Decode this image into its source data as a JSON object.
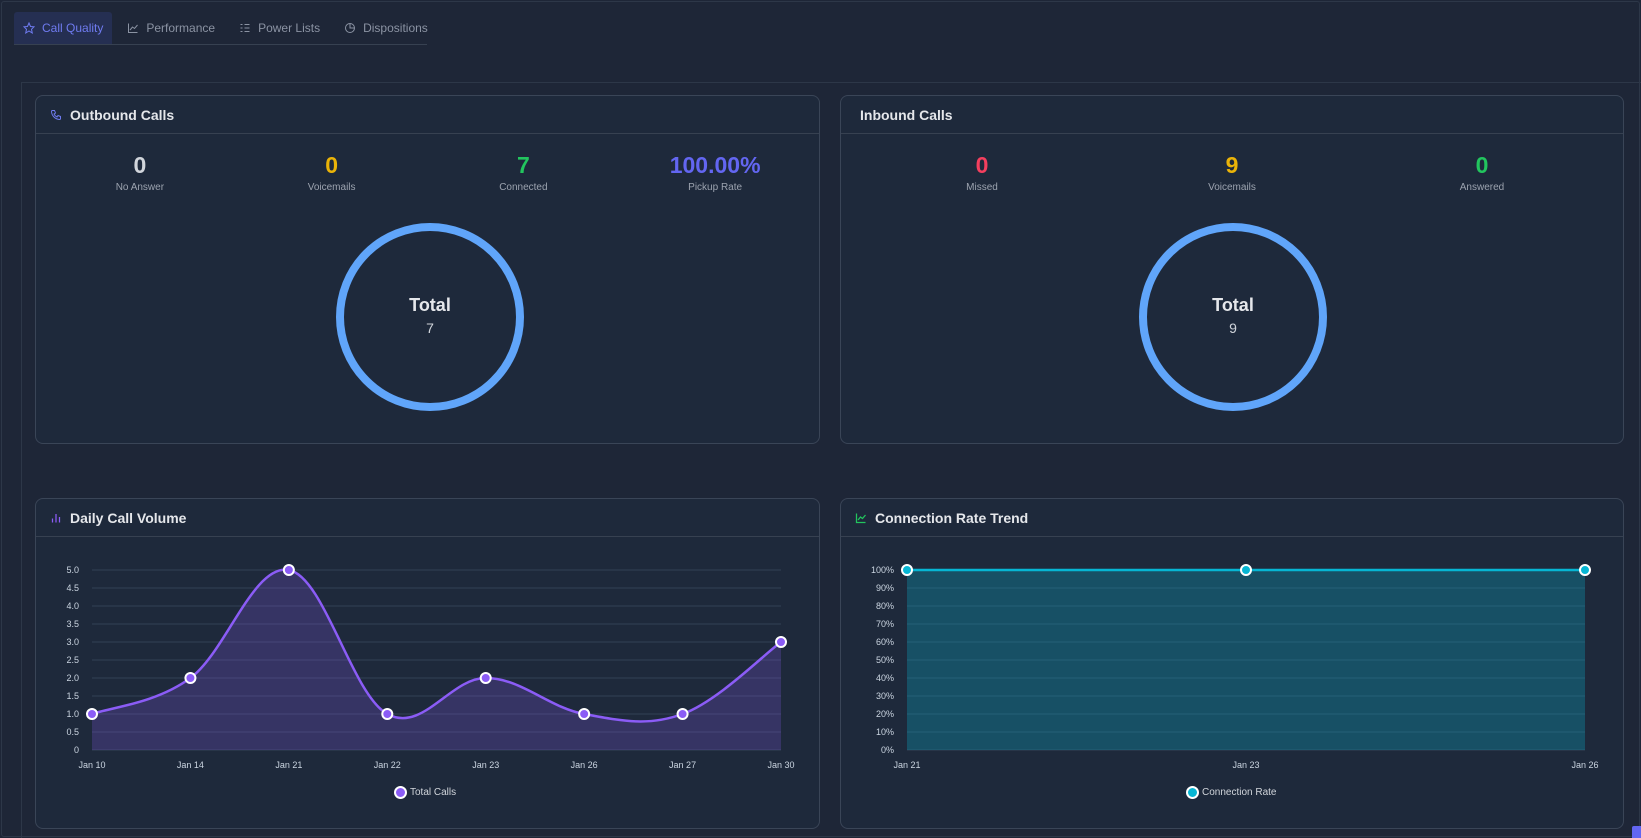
{
  "tabs": [
    {
      "label": "Call Quality",
      "icon": "star-icon",
      "active": true
    },
    {
      "label": "Performance",
      "icon": "line-chart-icon",
      "active": false
    },
    {
      "label": "Power Lists",
      "icon": "list-icon",
      "active": false
    },
    {
      "label": "Dispositions",
      "icon": "pie-chart-icon",
      "active": false
    }
  ],
  "outbound": {
    "title": "Outbound Calls",
    "icon": "phone-icon",
    "stats": [
      {
        "value": "0",
        "label": "No Answer",
        "color": "#d1d5db"
      },
      {
        "value": "0",
        "label": "Voicemails",
        "color": "#eab308"
      },
      {
        "value": "7",
        "label": "Connected",
        "color": "#22c55e"
      },
      {
        "value": "100.00%",
        "label": "Pickup Rate",
        "color": "#6366f1"
      }
    ],
    "donut": {
      "title": "Total",
      "value": "7",
      "color": "#60a5fa"
    }
  },
  "inbound": {
    "title": "Inbound Calls",
    "stats": [
      {
        "value": "0",
        "label": "Missed",
        "color": "#f43f5e"
      },
      {
        "value": "9",
        "label": "Voicemails",
        "color": "#eab308"
      },
      {
        "value": "0",
        "label": "Answered",
        "color": "#22c55e"
      }
    ],
    "donut": {
      "title": "Total",
      "value": "9",
      "color": "#60a5fa"
    }
  },
  "daily_volume": {
    "title": "Daily Call Volume",
    "icon": "bar-chart-icon",
    "legend": "Total Calls",
    "color": "#8b5cf6"
  },
  "connection_trend": {
    "title": "Connection Rate Trend",
    "icon": "trend-icon",
    "legend": "Connection Rate",
    "color": "#06b6d4"
  },
  "chart_data": [
    {
      "type": "area",
      "categories": [
        "Jan 10",
        "Jan 14",
        "Jan 21",
        "Jan 22",
        "Jan 23",
        "Jan 26",
        "Jan 27",
        "Jan 30"
      ],
      "series": [
        {
          "name": "Total Calls",
          "values": [
            1,
            2,
            5,
            1,
            2,
            1,
            1,
            3
          ]
        }
      ],
      "ylim": [
        0,
        5
      ],
      "yticks": [
        "0",
        "0.5",
        "1.0",
        "1.5",
        "2.0",
        "2.5",
        "3.0",
        "3.5",
        "4.0",
        "4.5",
        "5.0"
      ],
      "grid": true,
      "legend": "bottom"
    },
    {
      "type": "area",
      "categories": [
        "Jan 21",
        "Jan 23",
        "Jan 26"
      ],
      "series": [
        {
          "name": "Connection Rate",
          "values": [
            100,
            100,
            100
          ]
        }
      ],
      "ylim": [
        0,
        100
      ],
      "yticks": [
        "0%",
        "10%",
        "20%",
        "30%",
        "40%",
        "50%",
        "60%",
        "70%",
        "80%",
        "90%",
        "100%"
      ],
      "grid": true,
      "legend": "bottom"
    }
  ]
}
